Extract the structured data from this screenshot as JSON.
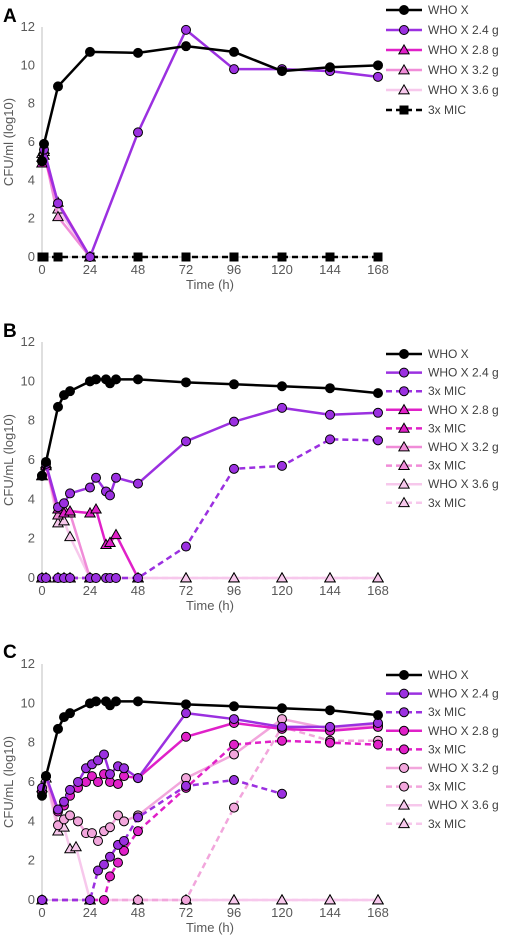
{
  "chart_data": [
    {
      "type": "line",
      "panel_label": "A",
      "xlabel": "Time (h)",
      "ylabel": "CFU/ml (log10)",
      "xticks": [
        0,
        24,
        48,
        72,
        96,
        120,
        144,
        168
      ],
      "xlim": [
        0,
        168
      ],
      "ylim": [
        0,
        12
      ],
      "yticks": [
        0,
        2,
        4,
        6,
        8,
        10,
        12
      ],
      "grid": false,
      "legend": "right",
      "series": [
        {
          "name": "WHO X",
          "color": "#000000",
          "dash": false,
          "marker": "circle",
          "x": [
            0,
            1,
            8,
            24,
            48,
            72,
            96,
            120,
            144,
            168
          ],
          "y": [
            5.0,
            5.9,
            8.9,
            10.7,
            10.65,
            11.0,
            10.7,
            9.7,
            9.9,
            10.0
          ]
        },
        {
          "name": "WHO X 2.4 g",
          "color": "#9b30e0",
          "dash": false,
          "marker": "circle",
          "x": [
            0,
            1,
            8,
            24,
            48,
            72,
            96,
            120,
            144,
            168
          ],
          "y": [
            5.0,
            5.6,
            2.8,
            0,
            6.5,
            11.85,
            9.8,
            9.8,
            9.7,
            9.4
          ]
        },
        {
          "name": "WHO X 2.8 g",
          "color": "#e020c8",
          "dash": false,
          "marker": "triangle",
          "x": [
            0,
            1,
            8,
            24
          ],
          "y": [
            4.9,
            5.3,
            2.85,
            0
          ]
        },
        {
          "name": "WHO X 3.2 g",
          "color": "#f08cd8",
          "dash": false,
          "marker": "triangle",
          "x": [
            0,
            1,
            8,
            24
          ],
          "y": [
            5.2,
            5.5,
            2.1,
            0
          ]
        },
        {
          "name": "WHO X 3.6 g",
          "color": "#f7c8ec",
          "dash": false,
          "marker": "triangle",
          "x": [
            0,
            1,
            8,
            24
          ],
          "y": [
            5.4,
            5.6,
            2.5,
            0
          ]
        },
        {
          "name": "3x MIC",
          "color": "#000000",
          "dash": true,
          "marker": "square",
          "x": [
            0,
            1,
            8,
            24,
            48,
            72,
            96,
            120,
            144,
            168
          ],
          "y": [
            0,
            0,
            0,
            0,
            0,
            0,
            0,
            0,
            0,
            0
          ]
        }
      ]
    },
    {
      "type": "line",
      "panel_label": "B",
      "xlabel": "Time (h)",
      "ylabel": "CFU/mL (log10)",
      "xticks": [
        0,
        24,
        48,
        72,
        96,
        120,
        144,
        168
      ],
      "xlim": [
        0,
        168
      ],
      "ylim": [
        0,
        12
      ],
      "yticks": [
        0,
        2,
        4,
        6,
        8,
        10,
        12
      ],
      "grid": false,
      "legend": "right",
      "series": [
        {
          "name": "WHO X",
          "color": "#000000",
          "dash": false,
          "marker": "circle",
          "x": [
            0,
            2,
            8,
            11,
            14,
            24,
            27,
            32,
            34,
            37,
            48,
            72,
            96,
            120,
            144,
            168
          ],
          "y": [
            5.2,
            5.9,
            8.7,
            9.3,
            9.5,
            10.0,
            10.1,
            10.1,
            9.9,
            10.1,
            10.1,
            9.95,
            9.85,
            9.75,
            9.65,
            9.4
          ]
        },
        {
          "name": "WHO X 2.4 g",
          "color": "#9b30e0",
          "dash": false,
          "marker": "circle",
          "x": [
            0,
            2,
            8,
            11,
            14,
            24,
            27,
            32,
            34,
            37,
            48,
            72,
            96,
            120,
            144,
            168
          ],
          "y": [
            5.2,
            5.8,
            3.6,
            3.8,
            4.3,
            4.6,
            5.1,
            4.4,
            4.2,
            5.1,
            4.8,
            6.95,
            7.95,
            8.65,
            8.3,
            8.4
          ]
        },
        {
          "name": "3x MIC",
          "color": "#9b30e0",
          "dash": true,
          "marker": "circle",
          "x": [
            0,
            2,
            8,
            11,
            14,
            24,
            27,
            32,
            34,
            37,
            48,
            72,
            96,
            120,
            144,
            168
          ],
          "y": [
            0,
            0,
            0,
            0,
            0,
            0,
            0,
            0,
            0,
            0,
            0,
            1.6,
            5.55,
            5.7,
            7.05,
            7.0
          ]
        },
        {
          "name": "WHO X 2.8 g",
          "color": "#e020c8",
          "dash": false,
          "marker": "triangle",
          "x": [
            0,
            2,
            8,
            11,
            14,
            24,
            27,
            32,
            34,
            37,
            48
          ],
          "y": [
            5.2,
            5.7,
            3.5,
            3.3,
            3.4,
            3.3,
            3.5,
            1.7,
            1.8,
            2.2,
            0
          ]
        },
        {
          "name": "3x MIC",
          "color": "#e020c8",
          "dash": true,
          "marker": "triangle",
          "x": [
            0,
            2,
            8,
            11,
            14,
            24
          ],
          "y": [
            0,
            0,
            0,
            0,
            0,
            0
          ]
        },
        {
          "name": "WHO X 3.2 g",
          "color": "#f08cd8",
          "dash": false,
          "marker": "triangle",
          "x": [
            0,
            2,
            8,
            11,
            14,
            24
          ],
          "y": [
            5.2,
            5.8,
            3.2,
            3.5,
            3.3,
            0
          ]
        },
        {
          "name": "3x MIC",
          "color": "#f08cd8",
          "dash": true,
          "marker": "triangle",
          "x": [
            0,
            2,
            8,
            11,
            14,
            24
          ],
          "y": [
            0,
            0,
            0,
            0,
            0,
            0
          ]
        },
        {
          "name": "WHO X 3.6 g",
          "color": "#f7c8ec",
          "dash": false,
          "marker": "triangle",
          "x": [
            0,
            2,
            8,
            11,
            14,
            24,
            48,
            72,
            96,
            120,
            144,
            168
          ],
          "y": [
            5.2,
            5.8,
            2.8,
            2.9,
            2.1,
            0,
            0,
            0,
            0,
            0,
            0,
            0
          ]
        },
        {
          "name": "3x MIC",
          "color": "#f7c8ec",
          "dash": true,
          "marker": "triangle",
          "x": [
            0,
            2,
            8,
            11,
            14,
            24,
            48,
            72,
            96,
            120,
            144,
            168
          ],
          "y": [
            0,
            0,
            0,
            0,
            0,
            0,
            0,
            0,
            0,
            0,
            0,
            0
          ]
        }
      ]
    },
    {
      "type": "line",
      "panel_label": "C",
      "xlabel": "Time (h)",
      "ylabel": "CFU/mL (log10)",
      "xticks": [
        0,
        24,
        48,
        72,
        96,
        120,
        144,
        168
      ],
      "xlim": [
        0,
        168
      ],
      "ylim": [
        0,
        12
      ],
      "yticks": [
        0,
        2,
        4,
        6,
        8,
        10,
        12
      ],
      "grid": false,
      "legend": "right",
      "series": [
        {
          "name": "WHO X",
          "color": "#000000",
          "dash": false,
          "marker": "circle",
          "x": [
            0,
            2,
            8,
            11,
            14,
            24,
            27,
            32,
            34,
            37,
            48,
            72,
            96,
            120,
            144,
            168
          ],
          "y": [
            5.3,
            6.3,
            8.7,
            9.3,
            9.5,
            10.0,
            10.1,
            10.1,
            9.9,
            10.1,
            10.1,
            9.95,
            9.85,
            9.75,
            9.65,
            9.4
          ]
        },
        {
          "name": "WHO X 2.4 g",
          "color": "#9b30e0",
          "dash": false,
          "marker": "circle",
          "x": [
            0,
            2,
            8,
            11,
            14,
            18,
            22,
            25,
            28,
            31,
            34,
            38,
            41,
            48,
            72,
            96,
            120,
            144,
            168
          ],
          "y": [
            5.7,
            6.3,
            4.6,
            5.0,
            5.6,
            6.0,
            6.7,
            6.9,
            7.1,
            7.4,
            6.4,
            6.8,
            6.7,
            6.2,
            9.5,
            9.2,
            8.8,
            8.8,
            9.0
          ]
        },
        {
          "name": "3x MIC",
          "color": "#9b30e0",
          "dash": true,
          "marker": "circle",
          "x": [
            0,
            24,
            28,
            31,
            34,
            38,
            41,
            48,
            72,
            96,
            120
          ],
          "y": [
            0,
            0,
            1.5,
            1.8,
            2.2,
            2.8,
            3.0,
            4.2,
            5.8,
            6.1,
            5.4
          ]
        },
        {
          "name": "WHO X 2.8 g",
          "color": "#e020c8",
          "dash": false,
          "marker": "circle",
          "x": [
            0,
            2,
            8,
            11,
            14,
            18,
            22,
            25,
            28,
            31,
            34,
            38,
            41,
            48,
            72,
            96,
            120,
            144,
            168
          ],
          "y": [
            5.5,
            6.3,
            4.5,
            4.8,
            5.3,
            5.7,
            6.0,
            6.3,
            6.0,
            6.4,
            6.0,
            5.9,
            6.3,
            6.2,
            8.3,
            9.0,
            8.7,
            8.6,
            8.8
          ]
        },
        {
          "name": "3x MIC",
          "color": "#e020c8",
          "dash": true,
          "marker": "circle",
          "x": [
            0,
            31,
            34,
            38,
            41,
            48,
            72,
            96,
            120,
            144,
            168
          ],
          "y": [
            0,
            0,
            1.2,
            1.9,
            2.5,
            3.5,
            5.7,
            7.9,
            8.1,
            8.0,
            7.9
          ]
        },
        {
          "name": "WHO X 3.2 g",
          "color": "#f2a6dc",
          "dash": false,
          "marker": "circle",
          "x": [
            0,
            2,
            8,
            11,
            14,
            18,
            22,
            25,
            28,
            31,
            34,
            38,
            41,
            48,
            72,
            96,
            120,
            144,
            168
          ],
          "y": [
            5.5,
            6.3,
            3.8,
            4.1,
            4.3,
            4.0,
            3.4,
            3.4,
            3.0,
            3.5,
            3.7,
            4.3,
            4.0,
            4.3,
            6.2,
            7.4,
            9.2,
            8.7,
            8.9
          ]
        },
        {
          "name": "3x MIC",
          "color": "#f2a6dc",
          "dash": true,
          "marker": "circle",
          "x": [
            0,
            24,
            48,
            72,
            96,
            120,
            144,
            168
          ],
          "y": [
            0,
            0,
            0,
            0,
            4.7,
            8.8,
            8.1,
            8.1
          ]
        },
        {
          "name": "WHO X 3.6 g",
          "color": "#f7c8ec",
          "dash": false,
          "marker": "triangle",
          "x": [
            0,
            2,
            8,
            11,
            14,
            17,
            24,
            48,
            72,
            96,
            120,
            144,
            168
          ],
          "y": [
            5.7,
            6.2,
            3.5,
            3.7,
            2.6,
            2.7,
            0,
            0,
            0,
            0,
            0,
            0,
            0
          ]
        },
        {
          "name": "3x MIC",
          "color": "#f7c8ec",
          "dash": true,
          "marker": "triangle",
          "x": [
            0,
            24,
            48,
            72,
            96,
            120,
            144,
            168
          ],
          "y": [
            0,
            0,
            0,
            0,
            0,
            0,
            0,
            0
          ]
        }
      ]
    }
  ]
}
